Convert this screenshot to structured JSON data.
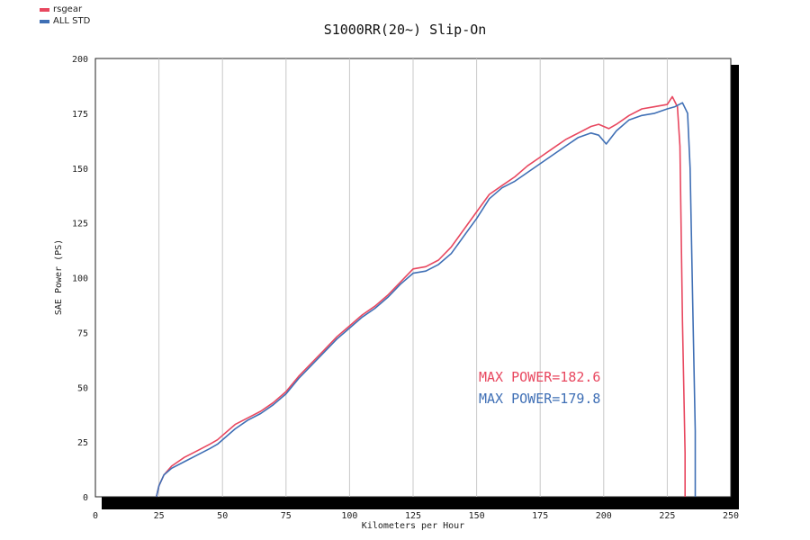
{
  "chart_data": {
    "type": "line",
    "title": "S1000RR(20~) Slip-On",
    "xlabel": "Kilometers per Hour",
    "ylabel": "SAE Power (PS)",
    "xlim": [
      0,
      250
    ],
    "ylim": [
      0,
      200
    ],
    "xticks": [
      0,
      25,
      50,
      75,
      100,
      125,
      150,
      175,
      200,
      225,
      250
    ],
    "yticks": [
      0,
      25,
      50,
      75,
      100,
      125,
      150,
      175,
      200
    ],
    "grid": "vertical",
    "legend_position": "top-left",
    "series": [
      {
        "name": "rsgear",
        "color": "#e8475f",
        "points": [
          [
            24,
            0
          ],
          [
            25,
            5
          ],
          [
            27,
            10
          ],
          [
            30,
            14
          ],
          [
            35,
            18
          ],
          [
            40,
            21
          ],
          [
            45,
            24
          ],
          [
            48,
            26
          ],
          [
            55,
            33
          ],
          [
            60,
            36
          ],
          [
            65,
            39
          ],
          [
            70,
            43
          ],
          [
            75,
            48
          ],
          [
            80,
            55
          ],
          [
            85,
            61
          ],
          [
            90,
            67
          ],
          [
            95,
            73
          ],
          [
            100,
            78
          ],
          [
            105,
            83
          ],
          [
            110,
            87
          ],
          [
            115,
            92
          ],
          [
            120,
            98
          ],
          [
            125,
            104
          ],
          [
            130,
            105
          ],
          [
            135,
            108
          ],
          [
            140,
            114
          ],
          [
            145,
            122
          ],
          [
            150,
            130
          ],
          [
            155,
            138
          ],
          [
            160,
            142
          ],
          [
            165,
            146
          ],
          [
            170,
            151
          ],
          [
            175,
            155
          ],
          [
            180,
            159
          ],
          [
            185,
            163
          ],
          [
            190,
            166
          ],
          [
            195,
            169
          ],
          [
            198,
            170
          ],
          [
            202,
            168
          ],
          [
            205,
            170
          ],
          [
            210,
            174
          ],
          [
            215,
            177
          ],
          [
            220,
            178
          ],
          [
            225,
            179
          ],
          [
            227,
            182.6
          ],
          [
            229,
            178
          ],
          [
            230,
            160
          ],
          [
            231,
            80
          ],
          [
            232,
            20
          ],
          [
            232,
            0
          ]
        ]
      },
      {
        "name": "ALL STD",
        "color": "#3f6fb5",
        "points": [
          [
            24,
            0
          ],
          [
            25,
            5
          ],
          [
            27,
            10
          ],
          [
            30,
            13
          ],
          [
            35,
            16
          ],
          [
            40,
            19
          ],
          [
            45,
            22
          ],
          [
            48,
            24
          ],
          [
            55,
            31
          ],
          [
            60,
            35
          ],
          [
            65,
            38
          ],
          [
            70,
            42
          ],
          [
            75,
            47
          ],
          [
            80,
            54
          ],
          [
            85,
            60
          ],
          [
            90,
            66
          ],
          [
            95,
            72
          ],
          [
            100,
            77
          ],
          [
            105,
            82
          ],
          [
            110,
            86
          ],
          [
            115,
            91
          ],
          [
            120,
            97
          ],
          [
            125,
            102
          ],
          [
            130,
            103
          ],
          [
            135,
            106
          ],
          [
            140,
            111
          ],
          [
            145,
            119
          ],
          [
            150,
            127
          ],
          [
            155,
            136
          ],
          [
            160,
            141
          ],
          [
            165,
            144
          ],
          [
            170,
            148
          ],
          [
            175,
            152
          ],
          [
            180,
            156
          ],
          [
            185,
            160
          ],
          [
            190,
            164
          ],
          [
            195,
            166
          ],
          [
            198,
            165
          ],
          [
            201,
            161
          ],
          [
            205,
            167
          ],
          [
            210,
            172
          ],
          [
            215,
            174
          ],
          [
            220,
            175
          ],
          [
            225,
            177
          ],
          [
            228,
            178
          ],
          [
            231,
            179.8
          ],
          [
            233,
            175
          ],
          [
            234,
            150
          ],
          [
            235,
            90
          ],
          [
            236,
            30
          ],
          [
            236,
            0
          ]
        ]
      }
    ],
    "annotations": [
      {
        "text": "MAX POWER=182.6",
        "color": "#e8475f"
      },
      {
        "text": "MAX POWER=179.8",
        "color": "#3f6fb5"
      }
    ]
  }
}
